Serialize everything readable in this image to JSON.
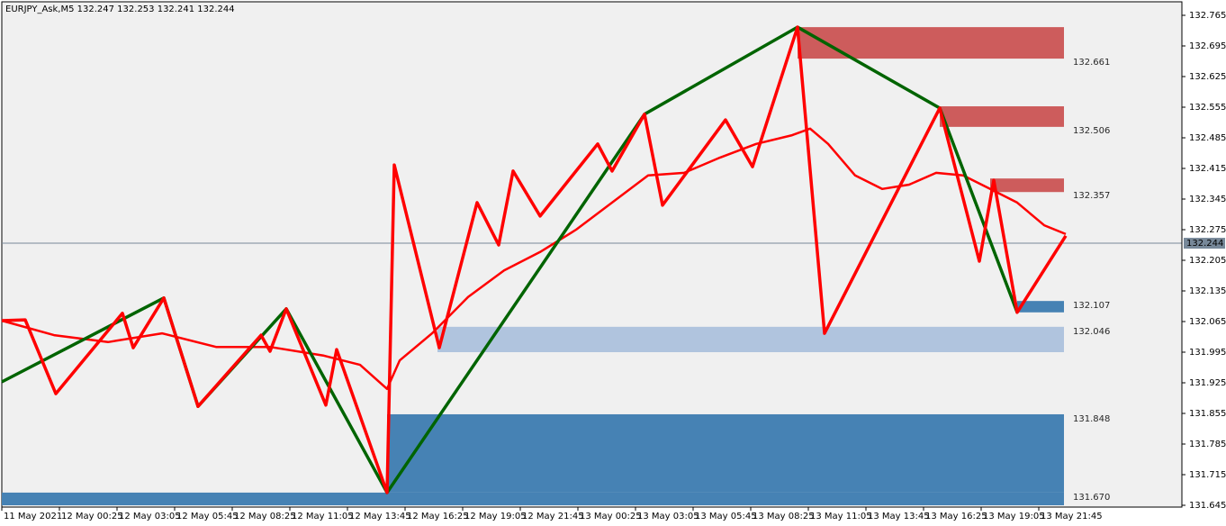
{
  "header": "EURJPY_Ask,M5  132.247 132.253 132.241 132.244",
  "chart_data": {
    "type": "line",
    "xlim": [
      0,
      656
    ],
    "ylim": [
      131.645,
      132.765
    ],
    "yticks": [
      132.765,
      132.695,
      132.625,
      132.555,
      132.485,
      132.415,
      132.345,
      132.275,
      132.205,
      132.135,
      132.065,
      131.995,
      131.925,
      131.855,
      131.785,
      131.715,
      131.645
    ],
    "xticks": [
      {
        "value": 0,
        "label": "11 May 2021"
      },
      {
        "value": 32,
        "label": "12 May 00:25"
      },
      {
        "value": 64,
        "label": "12 May 03:05"
      },
      {
        "value": 96,
        "label": "12 May 05:45"
      },
      {
        "value": 128,
        "label": "12 May 08:25"
      },
      {
        "value": 160,
        "label": "12 May 11:05"
      },
      {
        "value": 192,
        "label": "12 May 13:45"
      },
      {
        "value": 224,
        "label": "12 May 16:25"
      },
      {
        "value": 256,
        "label": "12 May 19:05"
      },
      {
        "value": 288,
        "label": "12 May 21:45"
      },
      {
        "value": 320,
        "label": "13 May 00:25"
      },
      {
        "value": 352,
        "label": "13 May 03:05"
      },
      {
        "value": 384,
        "label": "13 May 05:45"
      },
      {
        "value": 416,
        "label": "13 May 08:25"
      },
      {
        "value": 448,
        "label": "13 May 11:05"
      },
      {
        "value": 480,
        "label": "13 May 13:45"
      },
      {
        "value": 512,
        "label": "13 May 16:25"
      },
      {
        "value": 544,
        "label": "13 May 19:05"
      },
      {
        "value": 576,
        "label": "13 May 21:45"
      }
    ],
    "current_price": 132.244,
    "zones": [
      {
        "high": 132.738,
        "low": 132.666,
        "x_start": 442,
        "x_end": 590,
        "color": "#cd5c5c",
        "label": "132.661"
      },
      {
        "high": 132.557,
        "low": 132.51,
        "x_start": 521,
        "x_end": 590,
        "color": "#cd5c5c",
        "label": "132.506"
      },
      {
        "high": 132.392,
        "low": 132.361,
        "x_start": 549,
        "x_end": 590,
        "color": "#cd5c5c",
        "label": "132.357"
      },
      {
        "high": 132.112,
        "low": 132.086,
        "x_start": 564,
        "x_end": 590,
        "color": "#4682b4",
        "label": "132.107"
      },
      {
        "high": 132.053,
        "low": 131.995,
        "x_start": 242,
        "x_end": 590,
        "color": "#b0c4de",
        "label": "132.046"
      },
      {
        "high": 131.853,
        "low": 131.674,
        "x_start": 214,
        "x_end": 590,
        "color": "#4682b4",
        "label": "131.848"
      },
      {
        "high": 131.674,
        "low": 131.645,
        "x_start": 0,
        "x_end": 590,
        "color": "#4682b4",
        "label": "131.670"
      }
    ],
    "series": [
      {
        "color": "#ff0000",
        "x": [
          0,
          29,
          59,
          89,
          119,
          149,
          179,
          199,
          214,
          221,
          239,
          259,
          279,
          299,
          319,
          339,
          359,
          379,
          399,
          419,
          439,
          449,
          459,
          474,
          489,
          504,
          519,
          534,
          549,
          564,
          579,
          591
        ],
        "values": [
          132.067,
          132.034,
          132.018,
          132.038,
          132.007,
          132.007,
          131.987,
          131.966,
          131.911,
          131.976,
          132.038,
          132.121,
          132.182,
          132.224,
          132.275,
          132.337,
          132.399,
          132.405,
          132.44,
          132.471,
          132.491,
          132.506,
          132.471,
          132.399,
          132.368,
          132.378,
          132.405,
          132.399,
          132.368,
          132.337,
          132.285,
          132.265
        ]
      },
      {
        "color": "#006400",
        "x": [
          0,
          90,
          109,
          158,
          214,
          357,
          442,
          521,
          564
        ],
        "values": [
          131.927,
          132.119,
          131.871,
          132.094,
          131.674,
          132.539,
          132.738,
          132.553,
          132.086
        ]
      },
      {
        "color": "#ff0000",
        "x": [
          0,
          13,
          30,
          67,
          73,
          90,
          109,
          144,
          149,
          158,
          180,
          186,
          214,
          218,
          243,
          264,
          276,
          284,
          299,
          331,
          339,
          357,
          367,
          402,
          417,
          442,
          457,
          521,
          543,
          551,
          564,
          591
        ],
        "values": [
          132.067,
          132.069,
          131.9,
          132.084,
          132.005,
          132.119,
          131.871,
          132.034,
          131.997,
          132.094,
          131.874,
          132.001,
          131.674,
          132.423,
          132.005,
          132.337,
          132.24,
          132.409,
          132.306,
          132.471,
          132.409,
          132.539,
          132.331,
          132.526,
          132.419,
          132.738,
          132.038,
          132.553,
          132.203,
          132.388,
          132.086,
          132.261
        ]
      }
    ]
  }
}
